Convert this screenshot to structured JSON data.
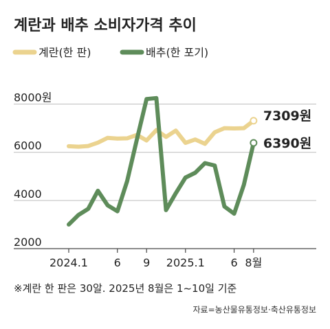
{
  "chart_data": {
    "type": "line",
    "title": "계란과 배추 소비자가격 추이",
    "x": [
      "2024.1",
      "2024.2",
      "2024.3",
      "2024.4",
      "2024.5",
      "2024.6",
      "2024.7",
      "2024.8",
      "2024.9",
      "2024.10",
      "2024.11",
      "2024.12",
      "2025.1",
      "2025.2",
      "2025.3",
      "2025.4",
      "2025.5",
      "2025.6",
      "2025.7",
      "2025.8"
    ],
    "x_tick_labels": [
      {
        "index": 0,
        "label": "2024.1"
      },
      {
        "index": 5,
        "label": "6"
      },
      {
        "index": 8,
        "label": "9"
      },
      {
        "index": 12,
        "label": "2025.1"
      },
      {
        "index": 17,
        "label": "6"
      },
      {
        "index": 19,
        "label": "8월"
      }
    ],
    "y_ticks": [
      {
        "value": 2000,
        "label": "2000"
      },
      {
        "value": 4000,
        "label": "4000"
      },
      {
        "value": 6000,
        "label": "6000"
      },
      {
        "value": 8000,
        "label": "8000원"
      }
    ],
    "ylim": [
      2000,
      8700
    ],
    "grid": true,
    "legend_position": "top-left",
    "series": [
      {
        "name": "계란(한 판)",
        "color": "#EBD38F",
        "values": [
          6250,
          6230,
          6260,
          6400,
          6600,
          6570,
          6580,
          6720,
          6490,
          6920,
          6640,
          6900,
          6390,
          6530,
          6350,
          6830,
          7000,
          6990,
          7000,
          7309
        ],
        "end_label": "7309원"
      },
      {
        "name": "배추(한 포기)",
        "color": "#5E8C5A",
        "values": [
          3000,
          3400,
          3650,
          4400,
          3800,
          3550,
          4800,
          6530,
          8210,
          8250,
          3600,
          4300,
          4950,
          5150,
          5550,
          5450,
          3750,
          3450,
          4650,
          6390
        ],
        "end_label": "6390원"
      }
    ]
  },
  "footnote": "※계란 한 판은 30알. 2025년 8월은 1~10일 기준",
  "source": "자료=농산물유통정보·축산유통정보"
}
